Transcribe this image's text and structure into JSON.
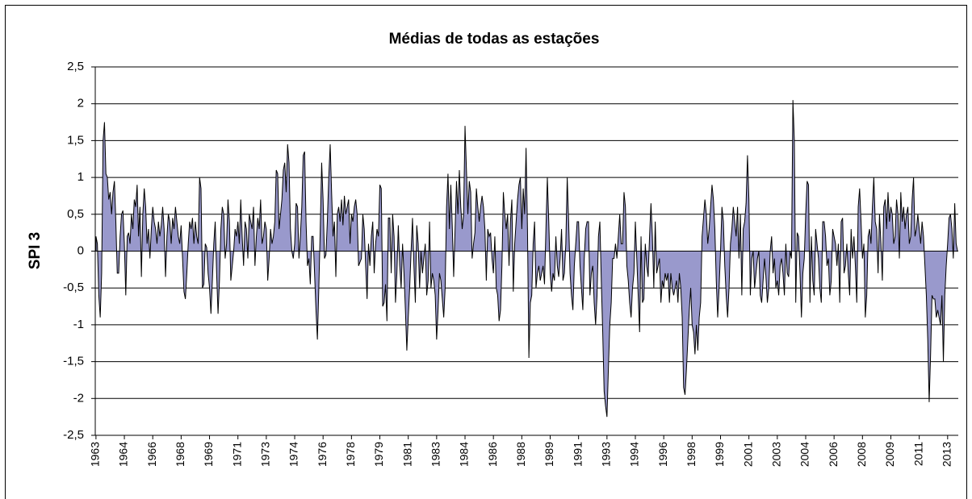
{
  "chart_data": {
    "type": "area",
    "title": "Médias de todas as estações",
    "y_label": "SPI 3",
    "color": "#9999cc",
    "line_color": "#000000",
    "grid": true,
    "ylim": [
      -2.5,
      2.5
    ],
    "yticks": [
      {
        "value": -2.5,
        "label": "-2,5"
      },
      -2,
      {
        "value": -1.5,
        "label": "-1,5"
      },
      -1,
      {
        "value": -0.5,
        "label": "-0,5"
      },
      0,
      {
        "value": 0.5,
        "label": "0,5"
      },
      1,
      {
        "value": 1.5,
        "label": "1,5"
      },
      2,
      {
        "value": 2.5,
        "label": "2,5"
      }
    ],
    "categories": [
      "1963",
      null,
      null,
      null,
      null,
      null,
      null,
      null,
      null,
      null,
      null,
      null,
      null,
      null,
      null,
      null,
      null,
      null,
      null,
      null,
      "1964",
      null,
      null,
      null,
      null,
      null,
      null,
      null,
      null,
      null,
      null,
      null,
      null,
      null,
      null,
      null,
      null,
      null,
      null,
      null,
      "1966",
      null,
      null,
      null,
      null,
      null,
      null,
      null,
      null,
      null,
      null,
      null,
      null,
      null,
      null,
      null,
      null,
      null,
      null,
      null,
      "1968",
      null,
      null,
      null,
      null,
      null,
      null,
      null,
      null,
      null,
      null,
      null,
      null,
      null,
      null,
      null,
      null,
      null,
      null,
      null,
      "1969",
      null,
      null,
      null,
      null,
      null,
      null,
      null,
      null,
      null,
      null,
      null,
      null,
      null,
      null,
      null,
      null,
      null,
      null,
      null,
      "1971",
      null,
      null,
      null,
      null,
      null,
      null,
      null,
      null,
      null,
      null,
      null,
      null,
      null,
      null,
      null,
      null,
      null,
      null,
      null,
      "1973",
      null,
      null,
      null,
      null,
      null,
      null,
      null,
      null,
      null,
      null,
      null,
      null,
      null,
      null,
      null,
      null,
      null,
      null,
      null,
      "1974",
      null,
      null,
      null,
      null,
      null,
      null,
      null,
      null,
      null,
      null,
      null,
      null,
      null,
      null,
      null,
      null,
      null,
      null,
      null,
      "1976",
      null,
      null,
      null,
      null,
      null,
      null,
      null,
      null,
      null,
      null,
      null,
      null,
      null,
      null,
      null,
      null,
      null,
      null,
      null,
      "1978",
      null,
      null,
      null,
      null,
      null,
      null,
      null,
      null,
      null,
      null,
      null,
      null,
      null,
      null,
      null,
      null,
      null,
      null,
      null,
      "1979",
      null,
      null,
      null,
      null,
      null,
      null,
      null,
      null,
      null,
      null,
      null,
      null,
      null,
      null,
      null,
      null,
      null,
      null,
      null,
      "1981",
      null,
      null,
      null,
      null,
      null,
      null,
      null,
      null,
      null,
      null,
      null,
      null,
      null,
      null,
      null,
      null,
      null,
      null,
      null,
      "1983",
      null,
      null,
      null,
      null,
      null,
      null,
      null,
      null,
      null,
      null,
      null,
      null,
      null,
      null,
      null,
      null,
      null,
      null,
      null,
      "1984",
      null,
      null,
      null,
      null,
      null,
      null,
      null,
      null,
      null,
      null,
      null,
      null,
      null,
      null,
      null,
      null,
      null,
      null,
      null,
      "1986",
      null,
      null,
      null,
      null,
      null,
      null,
      null,
      null,
      null,
      null,
      null,
      null,
      null,
      null,
      null,
      null,
      null,
      null,
      null,
      "1988",
      null,
      null,
      null,
      null,
      null,
      null,
      null,
      null,
      null,
      null,
      null,
      null,
      null,
      null,
      null,
      null,
      null,
      null,
      null,
      "1989",
      null,
      null,
      null,
      null,
      null,
      null,
      null,
      null,
      null,
      null,
      null,
      null,
      null,
      null,
      null,
      null,
      null,
      null,
      null,
      "1991",
      null,
      null,
      null,
      null,
      null,
      null,
      null,
      null,
      null,
      null,
      null,
      null,
      null,
      null,
      null,
      null,
      null,
      null,
      null,
      "1993",
      null,
      null,
      null,
      null,
      null,
      null,
      null,
      null,
      null,
      null,
      null,
      null,
      null,
      null,
      null,
      null,
      null,
      null,
      null,
      "1994",
      null,
      null,
      null,
      null,
      null,
      null,
      null,
      null,
      null,
      null,
      null,
      null,
      null,
      null,
      null,
      null,
      null,
      null,
      null,
      "1996",
      null,
      null,
      null,
      null,
      null,
      null,
      null,
      null,
      null,
      null,
      null,
      null,
      null,
      null,
      null,
      null,
      null,
      null,
      null,
      "1998",
      null,
      null,
      null,
      null,
      null,
      null,
      null,
      null,
      null,
      null,
      null,
      null,
      null,
      null,
      null,
      null,
      null,
      null,
      null,
      "1999",
      null,
      null,
      null,
      null,
      null,
      null,
      null,
      null,
      null,
      null,
      null,
      null,
      null,
      null,
      null,
      null,
      null,
      null,
      null,
      "2001",
      null,
      null,
      null,
      null,
      null,
      null,
      null,
      null,
      null,
      null,
      null,
      null,
      null,
      null,
      null,
      null,
      null,
      null,
      null,
      "2003",
      null,
      null,
      null,
      null,
      null,
      null,
      null,
      null,
      null,
      null,
      null,
      null,
      null,
      null,
      null,
      null,
      null,
      null,
      null,
      "2004",
      null,
      null,
      null,
      null,
      null,
      null,
      null,
      null,
      null,
      null,
      null,
      null,
      null,
      null,
      null,
      null,
      null,
      null,
      null,
      "2006",
      null,
      null,
      null,
      null,
      null,
      null,
      null,
      null,
      null,
      null,
      null,
      null,
      null,
      null,
      null,
      null,
      null,
      null,
      null,
      "2008",
      null,
      null,
      null,
      null,
      null,
      null,
      null,
      null,
      null,
      null,
      null,
      null,
      null,
      null,
      null,
      null,
      null,
      null,
      null,
      "2009",
      null,
      null,
      null,
      null,
      null,
      null,
      null,
      null,
      null,
      null,
      null,
      null,
      null,
      null,
      null,
      null,
      null,
      null,
      null,
      "2011",
      null,
      null,
      null,
      null,
      null,
      null,
      null,
      null,
      null,
      null,
      null,
      null,
      null,
      null,
      null,
      null,
      null,
      null,
      null,
      "2013",
      null,
      null,
      null,
      null,
      null,
      null,
      null
    ],
    "values": [
      0.2,
      0.1,
      -0.6,
      -0.9,
      -0.3,
      1.5,
      1.75,
      1.05,
      1.0,
      0.7,
      0.8,
      0.5,
      0.8,
      0.95,
      0.4,
      -0.3,
      -0.3,
      0.2,
      0.5,
      0.55,
      0.1,
      -0.6,
      0.2,
      0.25,
      0.1,
      0.5,
      0.3,
      0.7,
      0.6,
      0.9,
      0.2,
      0.6,
      -0.35,
      0.5,
      0.85,
      0.6,
      0.1,
      0.3,
      -0.1,
      0.3,
      0.6,
      0.4,
      0.3,
      0.1,
      0.4,
      0.2,
      0.35,
      0.6,
      0.3,
      -0.35,
      0.2,
      0.5,
      0.4,
      0.1,
      0.45,
      0.3,
      0.6,
      0.4,
      0.2,
      0.1,
      0.35,
      -0.1,
      -0.55,
      -0.65,
      -0.3,
      0.1,
      0.4,
      0.3,
      0.45,
      0.1,
      0.4,
      0.2,
      0.1,
      1.0,
      0.85,
      -0.5,
      -0.45,
      0.1,
      0.05,
      -0.3,
      -0.5,
      -0.85,
      -0.4,
      0.1,
      0.4,
      -0.3,
      -0.85,
      -0.4,
      0.3,
      0.6,
      0.5,
      -0.1,
      0.1,
      0.7,
      0.4,
      -0.4,
      -0.2,
      0.0,
      0.3,
      0.2,
      0.4,
      0.1,
      0.7,
      0.2,
      -0.2,
      0.4,
      0.3,
      -0.1,
      0.5,
      0.4,
      0.3,
      0.6,
      -0.2,
      0.2,
      0.45,
      0.3,
      0.7,
      0.1,
      0.2,
      0.4,
      0.3,
      -0.4,
      -0.1,
      0.3,
      0.1,
      0.2,
      0.4,
      1.1,
      1.05,
      0.3,
      0.5,
      0.7,
      1.1,
      1.2,
      0.8,
      1.45,
      1.2,
      0.3,
      0.0,
      -0.1,
      0.1,
      0.65,
      0.6,
      -0.1,
      0.2,
      0.6,
      1.3,
      1.35,
      0.4,
      -0.2,
      -0.1,
      -0.45,
      0.2,
      0.2,
      -0.3,
      -0.8,
      -1.2,
      -0.5,
      0.3,
      1.2,
      0.7,
      -0.1,
      -0.05,
      0.4,
      1.0,
      1.45,
      0.8,
      0.2,
      0.4,
      -0.35,
      0.5,
      0.6,
      0.4,
      0.7,
      0.35,
      0.75,
      0.5,
      0.6,
      0.7,
      0.1,
      0.5,
      0.4,
      0.6,
      0.7,
      0.5,
      -0.2,
      -0.15,
      -0.1,
      0.5,
      0.3,
      -0.2,
      -0.65,
      0.1,
      -0.2,
      0.2,
      0.4,
      -0.3,
      0.1,
      0.3,
      0.2,
      0.9,
      0.85,
      -0.75,
      -0.7,
      -0.45,
      -0.95,
      0.45,
      0.45,
      -0.3,
      0.5,
      0.2,
      -0.7,
      -0.3,
      0.35,
      -0.2,
      -0.5,
      0.1,
      -0.3,
      -0.8,
      -1.35,
      -0.9,
      -0.5,
      0.0,
      0.45,
      -0.2,
      -0.7,
      0.35,
      0.1,
      -0.5,
      0.0,
      -0.3,
      -0.1,
      0.1,
      -0.6,
      -0.4,
      0.4,
      -0.5,
      -0.3,
      -0.4,
      -0.6,
      -1.2,
      -0.8,
      -0.3,
      -0.4,
      -0.65,
      -0.9,
      -0.5,
      0.6,
      1.05,
      0.3,
      0.9,
      0.35,
      -0.35,
      0.3,
      0.95,
      0.5,
      1.1,
      0.6,
      0.3,
      0.5,
      1.7,
      1.1,
      0.5,
      0.95,
      0.8,
      -0.1,
      0.1,
      0.25,
      0.85,
      0.6,
      0.4,
      0.6,
      0.75,
      0.6,
      0.3,
      -0.4,
      0.3,
      0.2,
      0.25,
      -0.1,
      -0.3,
      0.2,
      -0.5,
      -0.6,
      -0.95,
      -0.8,
      -0.2,
      0.8,
      0.5,
      0.3,
      0.5,
      -0.2,
      0.4,
      0.7,
      -0.55,
      0.1,
      0.4,
      0.7,
      0.9,
      1.0,
      0.3,
      0.85,
      0.5,
      1.4,
      0.3,
      -1.45,
      -0.7,
      -0.6,
      0.1,
      0.4,
      -0.5,
      -0.3,
      -0.2,
      -0.4,
      -0.3,
      -0.2,
      -0.45,
      0.3,
      1.0,
      0.4,
      -0.3,
      -0.55,
      -0.3,
      -0.4,
      0.2,
      -0.2,
      -0.35,
      -0.1,
      0.3,
      -0.4,
      -0.3,
      0.1,
      1.0,
      0.4,
      -0.3,
      -0.6,
      -0.8,
      -0.2,
      0.1,
      0.4,
      0.4,
      -0.2,
      -0.5,
      -0.8,
      -0.1,
      0.3,
      0.4,
      0.4,
      -0.6,
      -0.3,
      -0.2,
      -0.7,
      -1.0,
      -0.6,
      0.2,
      0.4,
      -0.4,
      -1.1,
      -1.9,
      -2.1,
      -2.25,
      -1.6,
      -1.0,
      -0.7,
      -0.1,
      -0.1,
      0.1,
      -0.1,
      0.2,
      0.5,
      0.1,
      0.1,
      0.8,
      0.6,
      -0.2,
      -0.4,
      -0.7,
      -0.9,
      -0.5,
      -0.3,
      0.4,
      -0.1,
      -0.6,
      -1.1,
      0.2,
      -0.7,
      -0.65,
      0.1,
      -0.2,
      -0.35,
      0.2,
      0.65,
      0.2,
      -0.5,
      0.4,
      -0.3,
      -0.2,
      -0.1,
      -0.7,
      -0.4,
      -0.5,
      -0.3,
      -0.4,
      -0.3,
      -0.7,
      -0.3,
      -0.5,
      -0.6,
      -0.5,
      -0.4,
      -0.7,
      -0.3,
      -0.5,
      -0.9,
      -1.85,
      -1.95,
      -1.6,
      -1.2,
      -0.8,
      -0.5,
      -1.0,
      -1.1,
      -1.4,
      -1.0,
      -1.35,
      -0.9,
      -0.7,
      0.2,
      0.45,
      0.7,
      0.5,
      0.1,
      0.3,
      0.6,
      0.9,
      0.7,
      0.3,
      -0.4,
      -0.9,
      -0.5,
      0.0,
      0.6,
      0.4,
      -0.2,
      -0.6,
      -0.9,
      -0.5,
      0.1,
      0.3,
      0.6,
      0.4,
      0.2,
      0.6,
      -0.1,
      0.5,
      -0.6,
      0.3,
      0.4,
      0.65,
      1.3,
      0.7,
      -0.6,
      -0.1,
      0.0,
      -0.5,
      -0.3,
      -0.1,
      0.0,
      -0.6,
      -0.7,
      -0.4,
      -0.1,
      -0.35,
      -0.7,
      -0.5,
      0.0,
      0.2,
      -0.3,
      -0.1,
      -0.5,
      -0.4,
      -0.6,
      -0.2,
      -0.1,
      -0.3,
      -0.6,
      0.1,
      -0.3,
      -0.35,
      0.0,
      -0.1,
      2.05,
      1.5,
      -0.7,
      0.25,
      0.2,
      -0.3,
      -0.9,
      -0.3,
      -0.1,
      0.5,
      0.95,
      0.9,
      -0.7,
      0.2,
      -0.4,
      -0.6,
      0.3,
      0.1,
      -0.1,
      -0.5,
      -0.7,
      0.4,
      0.4,
      0.2,
      -0.2,
      -0.1,
      -0.6,
      -0.4,
      0.3,
      0.2,
      0.1,
      -0.2,
      0.1,
      -0.7,
      0.4,
      0.45,
      -0.3,
      -0.2,
      0.1,
      -0.3,
      -0.6,
      0.3,
      -0.1,
      0.2,
      -0.2,
      -0.7,
      0.6,
      0.85,
      0.4,
      -0.1,
      0.1,
      -0.9,
      -0.6,
      0.2,
      0.3,
      0.1,
      0.6,
      1.0,
      0.4,
      0.3,
      -0.3,
      0.5,
      0.1,
      -0.4,
      0.6,
      0.7,
      0.3,
      0.8,
      0.4,
      0.6,
      0.5,
      0.1,
      0.2,
      0.7,
      0.5,
      -0.1,
      0.8,
      0.4,
      0.6,
      0.3,
      0.5,
      0.6,
      0.1,
      0.2,
      0.7,
      1.0,
      0.2,
      0.3,
      0.5,
      0.3,
      0.1,
      0.4,
      0.2,
      -0.2,
      -0.6,
      -1.2,
      -2.05,
      -1.4,
      -0.6,
      -0.65,
      -0.65,
      -0.9,
      -0.8,
      -0.9,
      -1.0,
      -0.6,
      -1.5,
      -0.6,
      -0.2,
      0.1,
      0.45,
      0.5,
      0.3,
      -0.1,
      0.65,
      0.1,
      0.0
    ]
  }
}
